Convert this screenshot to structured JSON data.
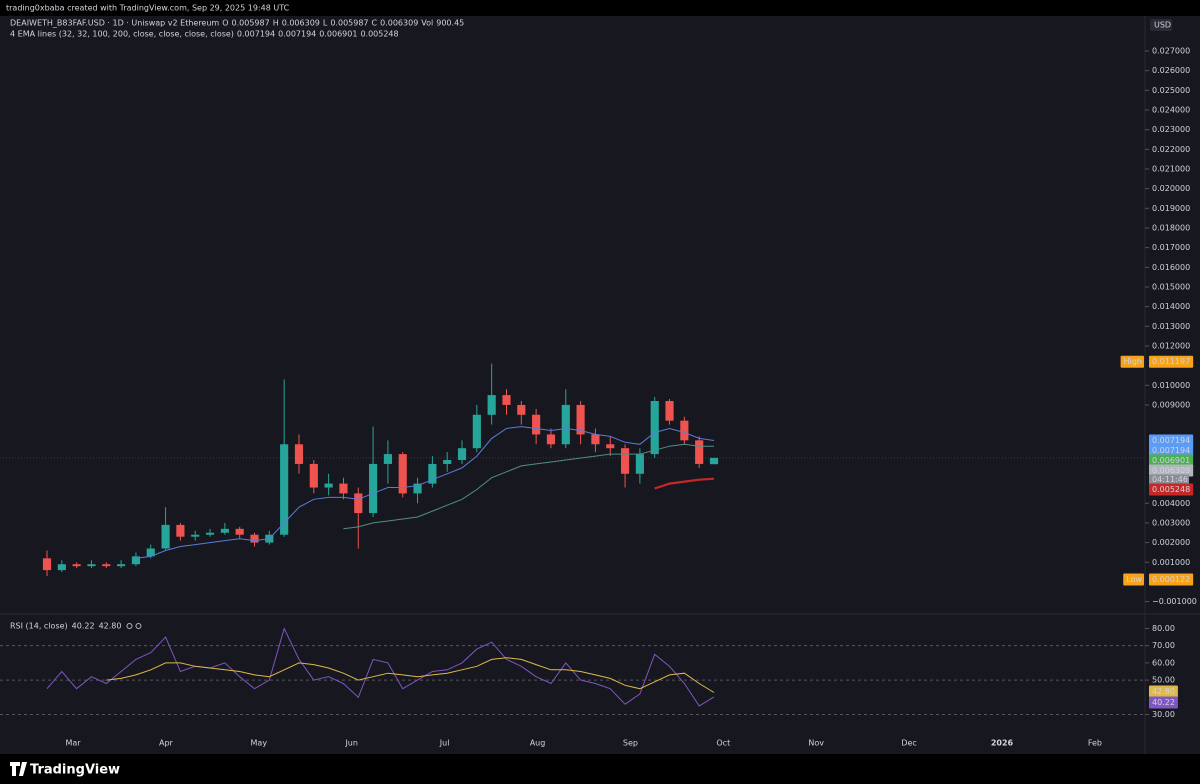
{
  "header": "trading0xbaba created with TradingView.com, Sep 29, 2025 19:48 UTC",
  "footer_logo": "TradingView",
  "chart_data": {
    "type": "candlestick",
    "symbol": "DEAIWETH_B83FAF.USD · 1D · Uniswap v2 Ethereum",
    "ohlc_labels": [
      "O",
      "H",
      "L",
      "C",
      "Vol"
    ],
    "ohlc_values": [
      0.005987,
      0.006309,
      0.005987,
      0.006309,
      900.45
    ],
    "currency": "USD",
    "ema_title": "4 EMA lines (32, 32, 100, 200, close, close, close, close)",
    "ema_values": [
      0.007194,
      0.007194,
      0.006901,
      0.005248
    ],
    "ema_colors": [
      "#5b9cf6",
      "#5b9cf6",
      "#4caf50",
      "#c62828"
    ],
    "high_label": "High",
    "high": 0.011197,
    "low_label": "Low",
    "low": 0.000122,
    "countdown": "04:11:46",
    "time_labels": [
      "Mar",
      "Apr",
      "May",
      "Jun",
      "Jul",
      "Aug",
      "Sep",
      "Oct",
      "Nov",
      "Dec",
      "2026",
      "Feb"
    ],
    "up_color": "#26a69a",
    "down_color": "#ef5350",
    "candles": {
      "open": [
        0.0012,
        0.0006,
        0.0009,
        0.0008,
        0.0009,
        0.0008,
        0.0009,
        0.0013,
        0.0017,
        0.0029,
        0.0023,
        0.0024,
        0.0025,
        0.0027,
        0.0024,
        0.002,
        0.0024,
        0.007,
        0.006,
        0.0048,
        0.005,
        0.0045,
        0.0035,
        0.006,
        0.0065,
        0.0045,
        0.005,
        0.006,
        0.0062,
        0.0068,
        0.0085,
        0.0095,
        0.009,
        0.0085,
        0.0075,
        0.007,
        0.009,
        0.0075,
        0.007,
        0.0068,
        0.0055,
        0.0065,
        0.0092,
        0.0082,
        0.0072,
        0.005987
      ],
      "high": [
        0.0016,
        0.0011,
        0.001,
        0.0011,
        0.001,
        0.0011,
        0.0015,
        0.0019,
        0.0038,
        0.003,
        0.0026,
        0.0027,
        0.003,
        0.0028,
        0.0025,
        0.0026,
        0.0103,
        0.0075,
        0.0062,
        0.0055,
        0.0053,
        0.0048,
        0.0079,
        0.0072,
        0.0066,
        0.0053,
        0.0064,
        0.0066,
        0.0072,
        0.009,
        0.0111,
        0.0098,
        0.0092,
        0.0088,
        0.0078,
        0.0098,
        0.0092,
        0.0078,
        0.0074,
        0.007,
        0.0068,
        0.0094,
        0.0093,
        0.0084,
        0.0074,
        0.006309
      ],
      "low": [
        0.0003,
        0.0005,
        0.0007,
        0.0007,
        0.0007,
        0.0007,
        0.0008,
        0.0012,
        0.0016,
        0.0021,
        0.0021,
        0.0023,
        0.0024,
        0.0022,
        0.0018,
        0.0019,
        0.0023,
        0.0055,
        0.0045,
        0.0044,
        0.0042,
        0.0017,
        0.0033,
        0.005,
        0.0043,
        0.004,
        0.0048,
        0.0056,
        0.006,
        0.0066,
        0.008,
        0.0085,
        0.008,
        0.007,
        0.0068,
        0.0068,
        0.007,
        0.0066,
        0.0064,
        0.0048,
        0.005,
        0.0063,
        0.008,
        0.007,
        0.0058,
        0.005987
      ],
      "close": [
        0.0006,
        0.0009,
        0.0008,
        0.0009,
        0.0008,
        0.0009,
        0.0013,
        0.0017,
        0.0029,
        0.0023,
        0.0024,
        0.0025,
        0.0027,
        0.0024,
        0.002,
        0.0024,
        0.007,
        0.006,
        0.0048,
        0.005,
        0.0045,
        0.0035,
        0.006,
        0.0065,
        0.0045,
        0.005,
        0.006,
        0.0062,
        0.0068,
        0.0085,
        0.0095,
        0.009,
        0.0085,
        0.0075,
        0.007,
        0.009,
        0.0075,
        0.007,
        0.0068,
        0.0055,
        0.0065,
        0.0092,
        0.0082,
        0.0072,
        0.006,
        0.006309
      ]
    },
    "ema_lines": [
      {
        "color": "#5b7bd9",
        "values": [
          null,
          null,
          null,
          null,
          null,
          null,
          0.0012,
          0.0013,
          0.0016,
          0.0018,
          0.0019,
          0.002,
          0.0021,
          0.0022,
          0.0021,
          0.0022,
          0.003,
          0.0038,
          0.0042,
          0.0043,
          0.0043,
          0.0042,
          0.0045,
          0.0048,
          0.0048,
          0.0049,
          0.0052,
          0.0055,
          0.0058,
          0.0064,
          0.0073,
          0.0078,
          0.0079,
          0.0078,
          0.0077,
          0.0078,
          0.0077,
          0.0075,
          0.0074,
          0.0071,
          0.007,
          0.0076,
          0.0078,
          0.0076,
          0.0073,
          0.007194
        ]
      },
      {
        "color": "#4f8f87",
        "values": [
          null,
          null,
          null,
          null,
          null,
          null,
          null,
          null,
          null,
          null,
          null,
          null,
          null,
          null,
          null,
          null,
          null,
          null,
          null,
          null,
          0.0027,
          0.0028,
          0.003,
          0.0031,
          0.0032,
          0.0033,
          0.0036,
          0.0039,
          0.0042,
          0.0047,
          0.0053,
          0.0056,
          0.0059,
          0.006,
          0.0061,
          0.0062,
          0.0063,
          0.0064,
          0.0065,
          0.0065,
          0.0065,
          0.0067,
          0.0069,
          0.007,
          0.0069,
          0.006901
        ]
      },
      {
        "color": "#c62828",
        "values": [
          null,
          null,
          null,
          null,
          null,
          null,
          null,
          null,
          null,
          null,
          null,
          null,
          null,
          null,
          null,
          null,
          null,
          null,
          null,
          null,
          null,
          null,
          null,
          null,
          null,
          null,
          null,
          null,
          null,
          null,
          null,
          null,
          null,
          null,
          null,
          null,
          null,
          null,
          null,
          null,
          null,
          0.00475,
          0.005,
          0.0051,
          0.0052,
          0.005248
        ]
      }
    ],
    "ylim": [
      -0.00153,
      0.02878
    ],
    "yticks": [
      {
        "value": -0.001,
        "label": "−0.001000"
      },
      {
        "value": 0.001,
        "label": "0.001000"
      },
      {
        "value": 0.002,
        "label": "0.002000"
      },
      {
        "value": 0.003,
        "label": "0.003000"
      },
      {
        "value": 0.004,
        "label": "0.004000"
      },
      {
        "value": 0.009,
        "label": "0.009000"
      },
      {
        "value": 0.01,
        "label": "0.010000"
      },
      {
        "value": 0.012,
        "label": "0.012000"
      },
      {
        "value": 0.013,
        "label": "0.013000"
      },
      {
        "value": 0.014,
        "label": "0.014000"
      },
      {
        "value": 0.015,
        "label": "0.015000"
      },
      {
        "value": 0.016,
        "label": "0.016000"
      },
      {
        "value": 0.017,
        "label": "0.017000"
      },
      {
        "value": 0.018,
        "label": "0.018000"
      },
      {
        "value": 0.019,
        "label": "0.019000"
      },
      {
        "value": 0.02,
        "label": "0.020000"
      },
      {
        "value": 0.021,
        "label": "0.021000"
      },
      {
        "value": 0.022,
        "label": "0.022000"
      },
      {
        "value": 0.023,
        "label": "0.023000"
      },
      {
        "value": 0.024,
        "label": "0.024000"
      },
      {
        "value": 0.025,
        "label": "0.025000"
      },
      {
        "value": 0.026,
        "label": "0.026000"
      },
      {
        "value": 0.027,
        "label": "0.027000"
      }
    ],
    "rsi": {
      "title": "RSI (14, close)",
      "legend_value": 40.22,
      "legend_signal": {
        "value": 42.8,
        "label": "42.80"
      },
      "color": "#7e57c2",
      "signal_color": "#e0b84a",
      "ylim": [
        18.1,
        88.4
      ],
      "yticks": [
        {
          "value": 80,
          "label": "80.00"
        },
        {
          "value": 70,
          "label": "70.00"
        },
        {
          "value": 60,
          "label": "60.00"
        },
        {
          "value": 50,
          "label": "50.00"
        },
        {
          "value": 30,
          "label": "30.00"
        }
      ],
      "levels": [
        70,
        50,
        30
      ],
      "values": [
        45,
        55,
        45,
        52,
        48,
        55,
        62,
        66,
        75,
        55,
        58,
        57,
        60,
        52,
        45,
        50,
        80,
        62,
        50,
        52,
        48,
        40,
        62,
        60,
        45,
        50,
        55,
        56,
        60,
        68,
        72,
        62,
        58,
        52,
        48,
        60,
        50,
        48,
        45,
        36,
        42,
        65,
        58,
        48,
        35,
        40.22
      ],
      "signal_values": [
        null,
        null,
        null,
        null,
        50,
        51,
        53,
        56,
        60,
        60,
        58,
        57,
        56,
        55,
        53,
        52,
        56,
        60,
        59,
        57,
        54,
        50,
        52,
        54,
        53,
        52,
        53,
        54,
        56,
        58,
        62,
        63,
        62,
        59,
        56,
        56,
        55,
        53,
        51,
        47,
        45,
        49,
        53,
        54,
        48,
        42.8
      ]
    }
  }
}
